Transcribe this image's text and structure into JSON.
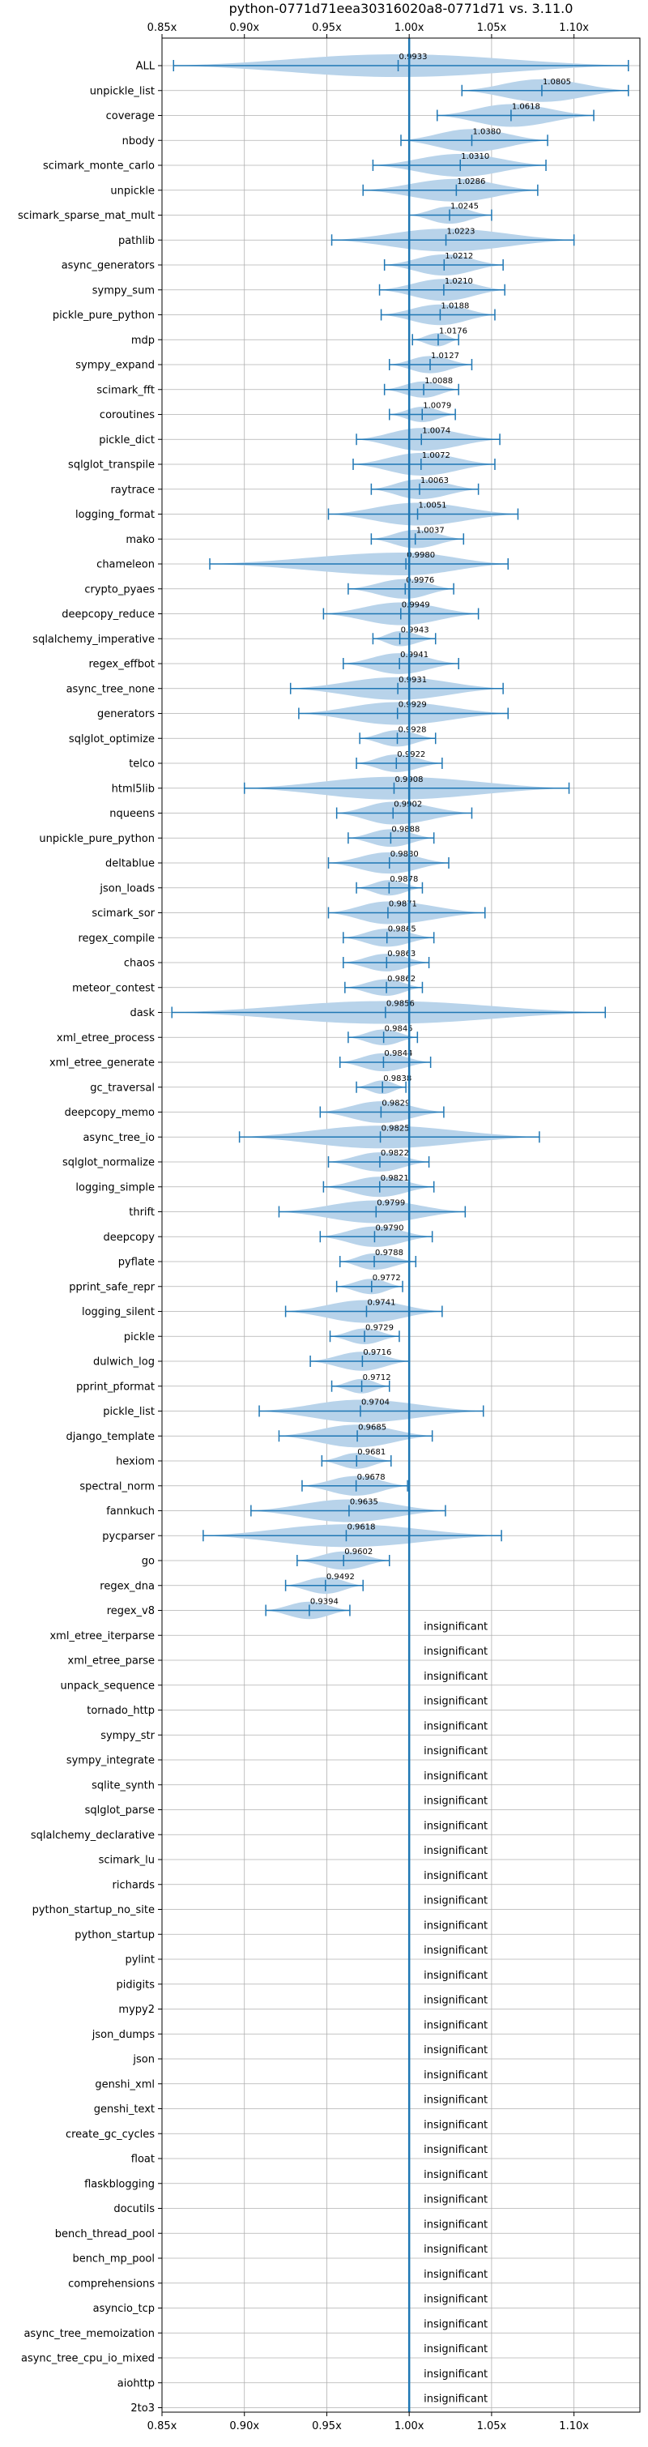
{
  "chart_data": {
    "type": "violin",
    "title": "python-0771d71eea30316020a8-0771d71 vs. 3.11.0",
    "xlim": [
      0.85,
      1.14
    ],
    "xticks": [
      {
        "value": 0.85,
        "label": "0.85x"
      },
      {
        "value": 0.9,
        "label": "0.90x"
      },
      {
        "value": 0.95,
        "label": "0.95x"
      },
      {
        "value": 1.0,
        "label": "1.00x"
      },
      {
        "value": 1.05,
        "label": "1.05x"
      },
      {
        "value": 1.1,
        "label": "1.10x"
      }
    ],
    "reference_line": 1.0,
    "grid": true,
    "colors": {
      "violin": "#b8d3ea",
      "line": "#1f77b4",
      "grid": "#b0b0b0"
    },
    "insignificant_text": "insignificant",
    "rows": [
      {
        "name": "ALL",
        "mean": 0.9933,
        "min": 0.857,
        "max": 1.133,
        "label": "0.9933"
      },
      {
        "name": "unpickle_list",
        "mean": 1.0805,
        "min": 1.032,
        "max": 1.133,
        "label": "1.0805"
      },
      {
        "name": "coverage",
        "mean": 1.0618,
        "min": 1.017,
        "max": 1.112,
        "label": "1.0618"
      },
      {
        "name": "nbody",
        "mean": 1.038,
        "min": 0.995,
        "max": 1.084,
        "label": "1.0380"
      },
      {
        "name": "scimark_monte_carlo",
        "mean": 1.031,
        "min": 0.978,
        "max": 1.083,
        "label": "1.0310"
      },
      {
        "name": "unpickle",
        "mean": 1.0286,
        "min": 0.972,
        "max": 1.078,
        "label": "1.0286"
      },
      {
        "name": "scimark_sparse_mat_mult",
        "mean": 1.0245,
        "min": 1.0,
        "max": 1.05,
        "label": "1.0245"
      },
      {
        "name": "pathlib",
        "mean": 1.0223,
        "min": 0.953,
        "max": 1.1,
        "label": "1.0223"
      },
      {
        "name": "async_generators",
        "mean": 1.0212,
        "min": 0.985,
        "max": 1.057,
        "label": "1.0212"
      },
      {
        "name": "sympy_sum",
        "mean": 1.021,
        "min": 0.982,
        "max": 1.058,
        "label": "1.0210"
      },
      {
        "name": "pickle_pure_python",
        "mean": 1.0188,
        "min": 0.983,
        "max": 1.052,
        "label": "1.0188"
      },
      {
        "name": "mdp",
        "mean": 1.0176,
        "min": 1.002,
        "max": 1.03,
        "label": "1.0176"
      },
      {
        "name": "sympy_expand",
        "mean": 1.0127,
        "min": 0.988,
        "max": 1.038,
        "label": "1.0127"
      },
      {
        "name": "scimark_fft",
        "mean": 1.0088,
        "min": 0.985,
        "max": 1.03,
        "label": "1.0088"
      },
      {
        "name": "coroutines",
        "mean": 1.0079,
        "min": 0.988,
        "max": 1.028,
        "label": "1.0079"
      },
      {
        "name": "pickle_dict",
        "mean": 1.0074,
        "min": 0.968,
        "max": 1.055,
        "label": "1.0074"
      },
      {
        "name": "sqlglot_transpile",
        "mean": 1.0072,
        "min": 0.966,
        "max": 1.052,
        "label": "1.0072"
      },
      {
        "name": "raytrace",
        "mean": 1.0063,
        "min": 0.977,
        "max": 1.042,
        "label": "1.0063"
      },
      {
        "name": "logging_format",
        "mean": 1.0051,
        "min": 0.951,
        "max": 1.066,
        "label": "1.0051"
      },
      {
        "name": "mako",
        "mean": 1.0037,
        "min": 0.977,
        "max": 1.033,
        "label": "1.0037"
      },
      {
        "name": "chameleon",
        "mean": 0.998,
        "min": 0.879,
        "max": 1.06,
        "label": "0.9980"
      },
      {
        "name": "crypto_pyaes",
        "mean": 0.9976,
        "min": 0.963,
        "max": 1.027,
        "label": "0.9976"
      },
      {
        "name": "deepcopy_reduce",
        "mean": 0.9949,
        "min": 0.948,
        "max": 1.042,
        "label": "0.9949"
      },
      {
        "name": "sqlalchemy_imperative",
        "mean": 0.9943,
        "min": 0.978,
        "max": 1.016,
        "label": "0.9943"
      },
      {
        "name": "regex_effbot",
        "mean": 0.9941,
        "min": 0.96,
        "max": 1.03,
        "label": "0.9941"
      },
      {
        "name": "async_tree_none",
        "mean": 0.9931,
        "min": 0.928,
        "max": 1.057,
        "label": "0.9931"
      },
      {
        "name": "generators",
        "mean": 0.9929,
        "min": 0.933,
        "max": 1.06,
        "label": "0.9929"
      },
      {
        "name": "sqlglot_optimize",
        "mean": 0.9928,
        "min": 0.97,
        "max": 1.016,
        "label": "0.9928"
      },
      {
        "name": "telco",
        "mean": 0.9922,
        "min": 0.968,
        "max": 1.02,
        "label": "0.9922"
      },
      {
        "name": "html5lib",
        "mean": 0.9908,
        "min": 0.9,
        "max": 1.097,
        "label": "0.9908"
      },
      {
        "name": "nqueens",
        "mean": 0.9902,
        "min": 0.956,
        "max": 1.038,
        "label": "0.9902"
      },
      {
        "name": "unpickle_pure_python",
        "mean": 0.9888,
        "min": 0.963,
        "max": 1.015,
        "label": "0.9888"
      },
      {
        "name": "deltablue",
        "mean": 0.988,
        "min": 0.951,
        "max": 1.024,
        "label": "0.9880"
      },
      {
        "name": "json_loads",
        "mean": 0.9878,
        "min": 0.968,
        "max": 1.008,
        "label": "0.9878"
      },
      {
        "name": "scimark_sor",
        "mean": 0.9871,
        "min": 0.951,
        "max": 1.046,
        "label": "0.9871"
      },
      {
        "name": "regex_compile",
        "mean": 0.9865,
        "min": 0.96,
        "max": 1.015,
        "label": "0.9865"
      },
      {
        "name": "chaos",
        "mean": 0.9863,
        "min": 0.96,
        "max": 1.012,
        "label": "0.9863"
      },
      {
        "name": "meteor_contest",
        "mean": 0.9862,
        "min": 0.961,
        "max": 1.008,
        "label": "0.9862"
      },
      {
        "name": "dask",
        "mean": 0.9856,
        "min": 0.856,
        "max": 1.119,
        "label": "0.9856"
      },
      {
        "name": "xml_etree_process",
        "mean": 0.9845,
        "min": 0.963,
        "max": 1.005,
        "label": "0.9845"
      },
      {
        "name": "xml_etree_generate",
        "mean": 0.9844,
        "min": 0.958,
        "max": 1.013,
        "label": "0.9844"
      },
      {
        "name": "gc_traversal",
        "mean": 0.9838,
        "min": 0.968,
        "max": 0.998,
        "label": "0.9838"
      },
      {
        "name": "deepcopy_memo",
        "mean": 0.9829,
        "min": 0.946,
        "max": 1.021,
        "label": "0.9829"
      },
      {
        "name": "async_tree_io",
        "mean": 0.9825,
        "min": 0.897,
        "max": 1.079,
        "label": "0.9825"
      },
      {
        "name": "sqlglot_normalize",
        "mean": 0.9822,
        "min": 0.951,
        "max": 1.012,
        "label": "0.9822"
      },
      {
        "name": "logging_simple",
        "mean": 0.9821,
        "min": 0.948,
        "max": 1.015,
        "label": "0.9821"
      },
      {
        "name": "thrift",
        "mean": 0.9799,
        "min": 0.921,
        "max": 1.034,
        "label": "0.9799"
      },
      {
        "name": "deepcopy",
        "mean": 0.979,
        "min": 0.946,
        "max": 1.014,
        "label": "0.9790"
      },
      {
        "name": "pyflate",
        "mean": 0.9788,
        "min": 0.958,
        "max": 1.004,
        "label": "0.9788"
      },
      {
        "name": "pprint_safe_repr",
        "mean": 0.9772,
        "min": 0.956,
        "max": 0.996,
        "label": "0.9772"
      },
      {
        "name": "logging_silent",
        "mean": 0.9741,
        "min": 0.925,
        "max": 1.02,
        "label": "0.9741"
      },
      {
        "name": "pickle",
        "mean": 0.9729,
        "min": 0.952,
        "max": 0.994,
        "label": "0.9729"
      },
      {
        "name": "dulwich_log",
        "mean": 0.9716,
        "min": 0.94,
        "max": 1.0,
        "label": "0.9716"
      },
      {
        "name": "pprint_pformat",
        "mean": 0.9712,
        "min": 0.953,
        "max": 0.988,
        "label": "0.9712"
      },
      {
        "name": "pickle_list",
        "mean": 0.9704,
        "min": 0.909,
        "max": 1.045,
        "label": "0.9704"
      },
      {
        "name": "django_template",
        "mean": 0.9685,
        "min": 0.921,
        "max": 1.014,
        "label": "0.9685"
      },
      {
        "name": "hexiom",
        "mean": 0.9681,
        "min": 0.947,
        "max": 0.989,
        "label": "0.9681"
      },
      {
        "name": "spectral_norm",
        "mean": 0.9678,
        "min": 0.935,
        "max": 0.999,
        "label": "0.9678"
      },
      {
        "name": "fannkuch",
        "mean": 0.9635,
        "min": 0.904,
        "max": 1.022,
        "label": "0.9635"
      },
      {
        "name": "pycparser",
        "mean": 0.9618,
        "min": 0.875,
        "max": 1.056,
        "label": "0.9618"
      },
      {
        "name": "go",
        "mean": 0.9602,
        "min": 0.932,
        "max": 0.988,
        "label": "0.9602"
      },
      {
        "name": "regex_dna",
        "mean": 0.9492,
        "min": 0.925,
        "max": 0.972,
        "label": "0.9492"
      },
      {
        "name": "regex_v8",
        "mean": 0.9394,
        "min": 0.913,
        "max": 0.964,
        "label": "0.9394"
      },
      {
        "name": "xml_etree_iterparse",
        "insignificant": true
      },
      {
        "name": "xml_etree_parse",
        "insignificant": true
      },
      {
        "name": "unpack_sequence",
        "insignificant": true
      },
      {
        "name": "tornado_http",
        "insignificant": true
      },
      {
        "name": "sympy_str",
        "insignificant": true
      },
      {
        "name": "sympy_integrate",
        "insignificant": true
      },
      {
        "name": "sqlite_synth",
        "insignificant": true
      },
      {
        "name": "sqlglot_parse",
        "insignificant": true
      },
      {
        "name": "sqlalchemy_declarative",
        "insignificant": true
      },
      {
        "name": "scimark_lu",
        "insignificant": true
      },
      {
        "name": "richards",
        "insignificant": true
      },
      {
        "name": "python_startup_no_site",
        "insignificant": true
      },
      {
        "name": "python_startup",
        "insignificant": true
      },
      {
        "name": "pylint",
        "insignificant": true
      },
      {
        "name": "pidigits",
        "insignificant": true
      },
      {
        "name": "mypy2",
        "insignificant": true
      },
      {
        "name": "json_dumps",
        "insignificant": true
      },
      {
        "name": "json",
        "insignificant": true
      },
      {
        "name": "genshi_xml",
        "insignificant": true
      },
      {
        "name": "genshi_text",
        "insignificant": true
      },
      {
        "name": "create_gc_cycles",
        "insignificant": true
      },
      {
        "name": "float",
        "insignificant": true
      },
      {
        "name": "flaskblogging",
        "insignificant": true
      },
      {
        "name": "docutils",
        "insignificant": true
      },
      {
        "name": "bench_thread_pool",
        "insignificant": true
      },
      {
        "name": "bench_mp_pool",
        "insignificant": true
      },
      {
        "name": "comprehensions",
        "insignificant": true
      },
      {
        "name": "asyncio_tcp",
        "insignificant": true
      },
      {
        "name": "async_tree_memoization",
        "insignificant": true
      },
      {
        "name": "async_tree_cpu_io_mixed",
        "insignificant": true
      },
      {
        "name": "aiohttp",
        "insignificant": true
      },
      {
        "name": "2to3",
        "insignificant": true
      }
    ]
  }
}
